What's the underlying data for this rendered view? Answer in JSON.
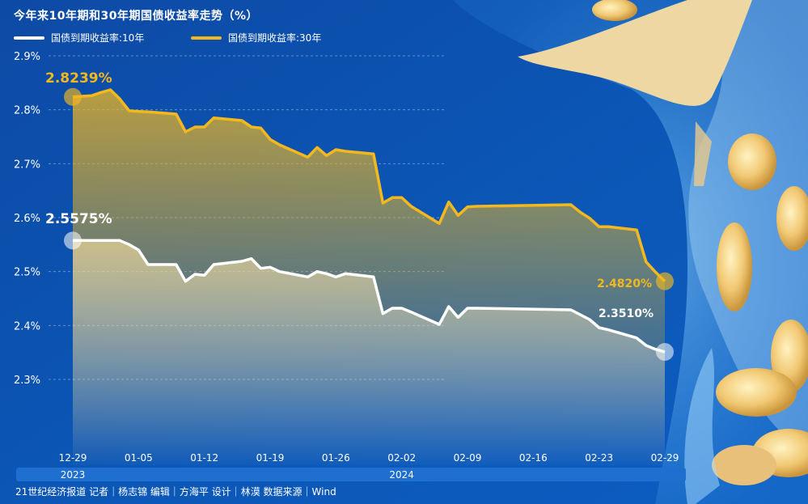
{
  "title": "今年来10年期和30年期国债收益率走势（%）",
  "credit": "21世纪经济报道  记者｜杨志锦  编辑｜方海平  设计｜林漠  数据来源｜Wind",
  "colors": {
    "ten_year": "#ffffff",
    "thirty_year": "#f2b81e",
    "background": "#0b4fa8"
  },
  "chart_data": {
    "type": "line",
    "title": "今年来10年期和30年期国债收益率走势（%）",
    "xlabel": "",
    "ylabel": "",
    "ylim": [
      2.2,
      2.9
    ],
    "y_ticks": [
      "2.3%",
      "2.4%",
      "2.5%",
      "2.6%",
      "2.7%",
      "2.8%",
      "2.9%"
    ],
    "y_tick_values": [
      2.3,
      2.4,
      2.5,
      2.6,
      2.7,
      2.8,
      2.9
    ],
    "x_ticks": [
      "12-29",
      "01-05",
      "01-12",
      "01-19",
      "01-26",
      "02-02",
      "02-09",
      "02-16",
      "02-23",
      "02-29"
    ],
    "year_labels": [
      "2023",
      "2024"
    ],
    "grid": "dashed horizontal",
    "legend_position": "top-left",
    "x_unit": "days since 2023-12-29",
    "series": [
      {
        "name": "国债到期收益率:10年",
        "color": "#ffffff",
        "x": [
          0,
          5,
          6,
          7,
          8,
          11,
          12,
          13,
          14,
          15,
          18,
          19,
          20,
          21,
          22,
          25,
          26,
          27,
          28,
          29,
          32,
          33,
          34,
          35,
          36,
          39,
          40,
          41,
          42,
          43,
          53,
          54,
          55,
          56,
          57,
          60,
          61,
          62,
          63
        ],
        "y": [
          2.5575,
          2.5575,
          2.55,
          2.54,
          2.513,
          2.513,
          2.482,
          2.495,
          2.493,
          2.513,
          2.519,
          2.524,
          2.506,
          2.508,
          2.5,
          2.49,
          2.5,
          2.496,
          2.49,
          2.496,
          2.49,
          2.422,
          2.432,
          2.432,
          2.425,
          2.402,
          2.435,
          2.415,
          2.432,
          2.432,
          2.429,
          2.42,
          2.411,
          2.396,
          2.392,
          2.377,
          2.363,
          2.356,
          2.351
        ],
        "end_label": "2.3510%",
        "start_label": "2.5575%"
      },
      {
        "name": "国债到期收益率:30年",
        "color": "#f2b81e",
        "x": [
          0,
          2,
          3,
          4,
          5,
          6,
          7,
          8,
          11,
          12,
          13,
          14,
          15,
          18,
          19,
          20,
          21,
          22,
          25,
          26,
          27,
          28,
          29,
          32,
          33,
          34,
          35,
          36,
          39,
          40,
          41,
          42,
          43,
          53,
          54,
          55,
          56,
          57,
          60,
          61,
          62,
          63
        ],
        "y": [
          2.8239,
          2.826,
          2.832,
          2.837,
          2.82,
          2.798,
          2.797,
          2.796,
          2.792,
          2.759,
          2.768,
          2.768,
          2.785,
          2.78,
          2.768,
          2.766,
          2.745,
          2.735,
          2.712,
          2.73,
          2.715,
          2.726,
          2.723,
          2.718,
          2.627,
          2.637,
          2.637,
          2.621,
          2.589,
          2.629,
          2.604,
          2.62,
          2.621,
          2.624,
          2.61,
          2.599,
          2.583,
          2.583,
          2.577,
          2.518,
          2.499,
          2.482
        ],
        "end_label": "2.4820%",
        "start_label": "2.8239%"
      }
    ]
  }
}
